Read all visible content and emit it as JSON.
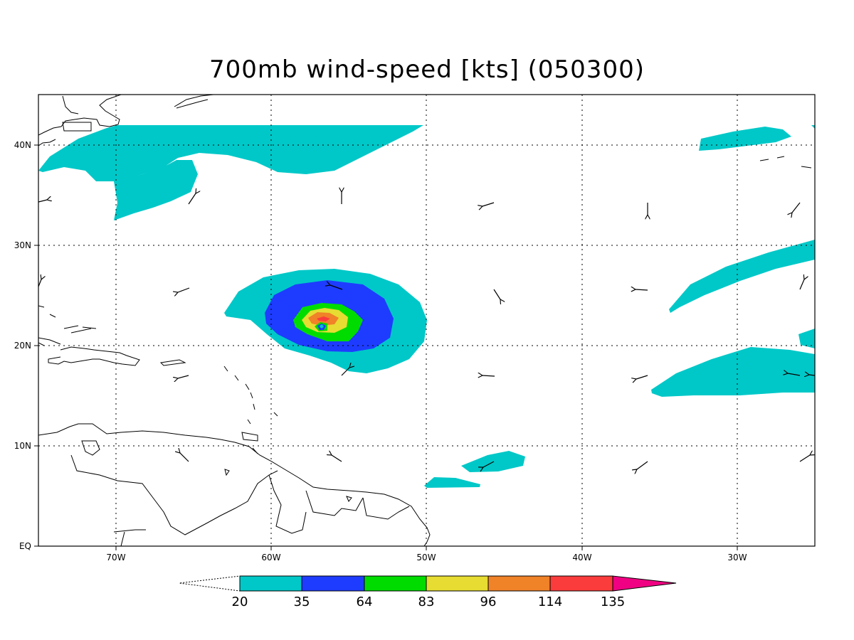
{
  "title": "700mb wind-speed [kts] (050300)",
  "axes": {
    "lon_labels": [
      "70W",
      "60W",
      "50W",
      "40W",
      "30W"
    ],
    "lat_labels": [
      "EQ",
      "10N",
      "20N",
      "30N",
      "40N"
    ],
    "lon_range": [
      -75,
      -25
    ],
    "lat_range": [
      0,
      45
    ]
  },
  "colorbar": {
    "levels": [
      "20",
      "35",
      "64",
      "83",
      "96",
      "114",
      "135"
    ],
    "colors": [
      "#00c8c8",
      "#1e3cff",
      "#00dc00",
      "#e6dc32",
      "#f08228",
      "#fa3c3c",
      "#f00082"
    ]
  },
  "colors": {
    "land_outline": "#000000",
    "grid": "#000000",
    "background": "#ffffff"
  }
}
